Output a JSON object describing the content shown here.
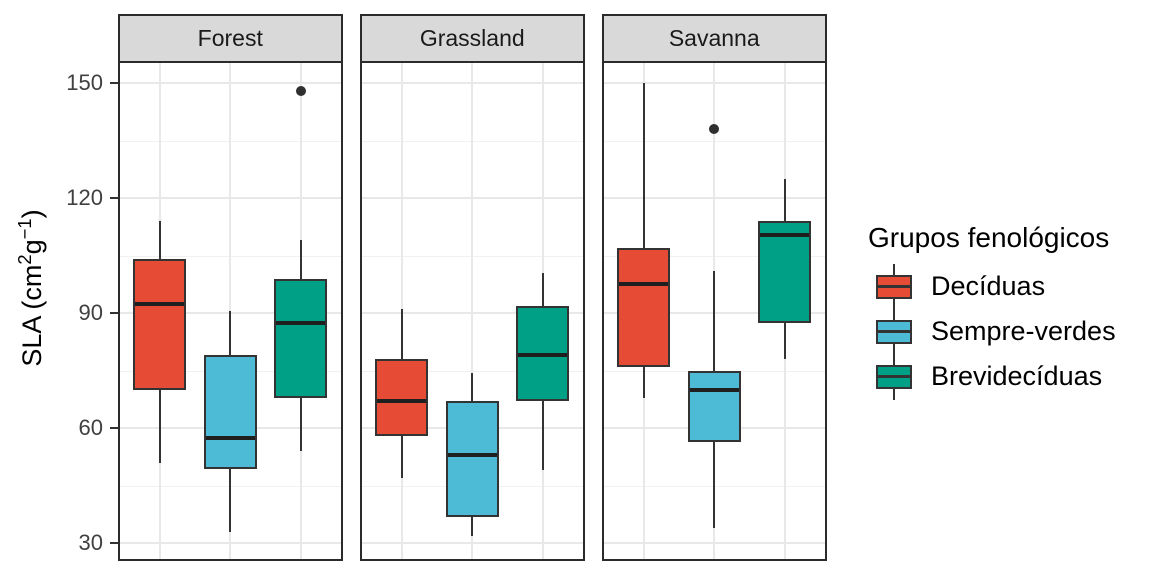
{
  "y_axis": {
    "title": {
      "pre": "SLA (cm",
      "sup1": "2",
      "mid": "g",
      "sup2": "−1",
      "post": ")"
    },
    "ticks": [
      "150",
      "120",
      "90",
      "60",
      "30"
    ]
  },
  "legend": {
    "title": "Grupos fenológicos",
    "items": [
      {
        "label": "Decíduas",
        "color": "#E64B35"
      },
      {
        "label": "Sempre-verdes",
        "color": "#4DBBD5"
      },
      {
        "label": "Brevidecíduas",
        "color": "#00A087"
      }
    ]
  },
  "colors": {
    "deciduas_fill": "#E64B35",
    "sempre_verdes_fill": "#4DBBD5",
    "brevideciduas_fill": "#00A087",
    "box_stroke": "#333333",
    "strip_background": "#D9D9D9",
    "grid_major": "#E8E8E8",
    "grid_minor": "#F1F1F1",
    "tick_text": "#404040"
  },
  "chart_data": {
    "type": "boxplot",
    "ylabel": "SLA (cm²g⁻¹)",
    "ylim": [
      26,
      155
    ],
    "yticks": [
      150,
      120,
      90,
      60,
      30
    ],
    "y_minor_gridlines": [
      135,
      105,
      75,
      45
    ],
    "grid": "on",
    "legend_title": "Grupos fenológicos",
    "legend_position": "right",
    "groups": [
      "Decíduas",
      "Sempre-verdes",
      "Brevidecíduas"
    ],
    "facets": [
      {
        "label": "Forest",
        "boxes": [
          {
            "group": "Decíduas",
            "whisker_low": 51,
            "q1": 70,
            "median": 92.5,
            "q3": 104,
            "whisker_high": 114,
            "outliers": []
          },
          {
            "group": "Sempre-verdes",
            "whisker_low": 33,
            "q1": 49.5,
            "median": 57.5,
            "q3": 79,
            "whisker_high": 90.5,
            "outliers": []
          },
          {
            "group": "Brevidecíduas",
            "whisker_low": 54,
            "q1": 68,
            "median": 87.5,
            "q3": 99,
            "whisker_high": 109,
            "outliers": [
              148
            ]
          }
        ]
      },
      {
        "label": "Grassland",
        "boxes": [
          {
            "group": "Decíduas",
            "whisker_low": 47,
            "q1": 58,
            "median": 67,
            "q3": 78,
            "whisker_high": 91,
            "outliers": []
          },
          {
            "group": "Sempre-verdes",
            "whisker_low": 32,
            "q1": 37,
            "median": 53,
            "q3": 67,
            "whisker_high": 74.5,
            "outliers": []
          },
          {
            "group": "Brevidecíduas",
            "whisker_low": 49,
            "q1": 67,
            "median": 79,
            "q3": 92,
            "whisker_high": 100.5,
            "outliers": []
          }
        ]
      },
      {
        "label": "Savanna",
        "boxes": [
          {
            "group": "Decíduas",
            "whisker_low": 68,
            "q1": 76,
            "median": 97.5,
            "q3": 107,
            "whisker_high": 150,
            "outliers": []
          },
          {
            "group": "Sempre-verdes",
            "whisker_low": 34,
            "q1": 56.5,
            "median": 70,
            "q3": 75,
            "whisker_high": 101,
            "outliers": [
              138
            ]
          },
          {
            "group": "Brevidecíduas",
            "whisker_low": 78,
            "q1": 87.5,
            "median": 110.5,
            "q3": 114,
            "whisker_high": 125,
            "outliers": []
          }
        ]
      }
    ]
  }
}
